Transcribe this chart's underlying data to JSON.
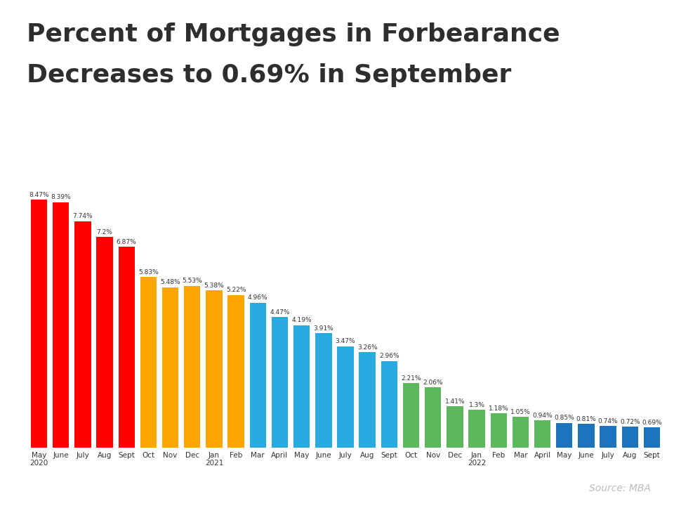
{
  "title_line1": "Percent of Mortgages in Forbearance",
  "title_line2": "Decreases to 0.69% in September",
  "labels": [
    "May\n2020",
    "June",
    "July",
    "Aug",
    "Sept",
    "Oct",
    "Nov",
    "Dec",
    "Jan\n2021",
    "Feb",
    "Mar",
    "April",
    "May",
    "June",
    "July",
    "Aug",
    "Sept",
    "Oct",
    "Nov",
    "Dec",
    "Jan\n2022",
    "Feb",
    "Mar",
    "April",
    "May",
    "June",
    "July",
    "Aug",
    "Sept"
  ],
  "values": [
    8.47,
    8.39,
    7.74,
    7.2,
    6.87,
    5.83,
    5.48,
    5.53,
    5.38,
    5.22,
    4.96,
    4.47,
    4.19,
    3.91,
    3.47,
    3.26,
    2.96,
    2.21,
    2.06,
    1.41,
    1.3,
    1.18,
    1.05,
    0.94,
    0.85,
    0.81,
    0.74,
    0.72,
    0.69
  ],
  "colors": [
    "#FF0000",
    "#FF0000",
    "#FF0000",
    "#FF0000",
    "#FF0000",
    "#FFA500",
    "#FFA500",
    "#FFA500",
    "#FFA500",
    "#FFA500",
    "#29ABE2",
    "#29ABE2",
    "#29ABE2",
    "#29ABE2",
    "#29ABE2",
    "#29ABE2",
    "#29ABE2",
    "#5CB85C",
    "#5CB85C",
    "#5CB85C",
    "#5CB85C",
    "#5CB85C",
    "#5CB85C",
    "#5CB85C",
    "#1C75BC",
    "#1C75BC",
    "#1C75BC",
    "#1C75BC",
    "#1C75BC"
  ],
  "background_color": "#FFFFFF",
  "title_color": "#2E2E2E",
  "label_color": "#333333",
  "value_color": "#333333",
  "source_text": "Source: MBA",
  "source_color": "#BBBBBB",
  "top_accent_color": "#29ABE2",
  "bar_width": 0.75,
  "ylim_max": 10.2,
  "label_fontsize": 7.5,
  "value_fontsize": 6.5,
  "title_fontsize": 26
}
